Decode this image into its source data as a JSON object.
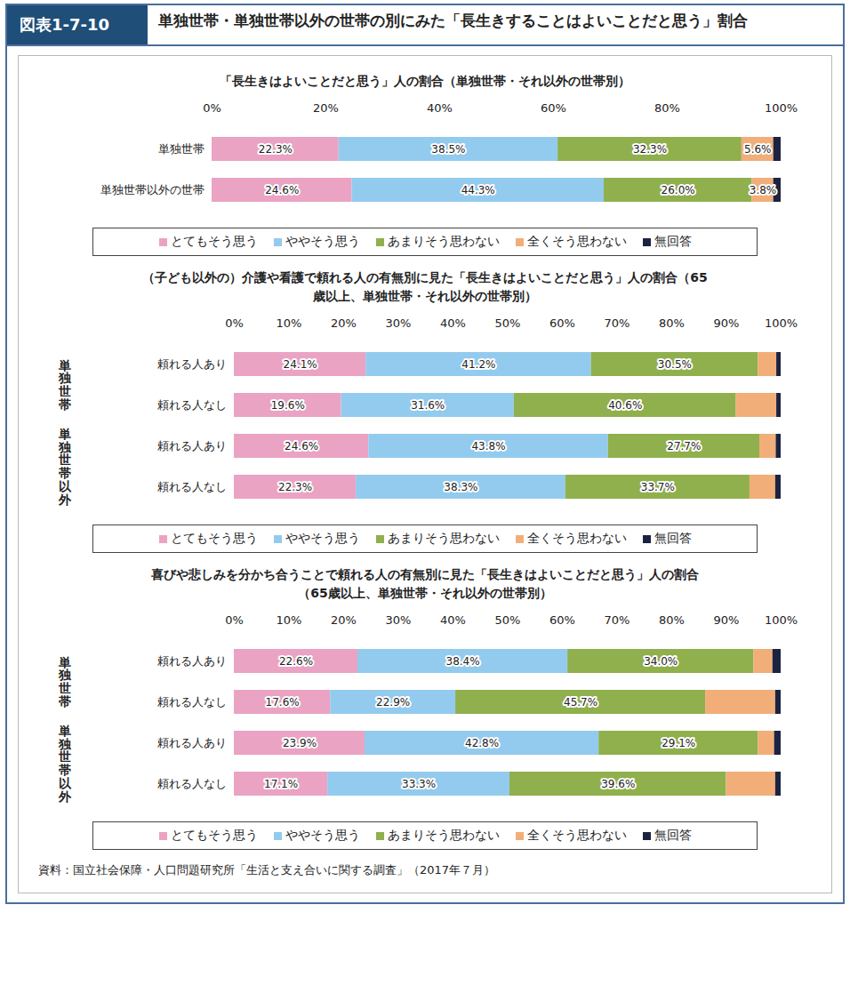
{
  "header": {
    "label": "図表1-7-10",
    "title": "単独世帯・単独世帯以外の世帯の別にみた「長生きすることはよいことだと思う」割合"
  },
  "source": "資料：国立社会保障・人口問題研究所「生活と支え合いに関する調査」（2017年７月）",
  "chart_data": [
    {
      "type": "bar",
      "orientation": "horizontal",
      "stacked": true,
      "data_labels": true,
      "title": "「長生きはよいことだと思う」人の割合（単独世帯・それ以外の世帯別）",
      "categories": [
        "単独世帯",
        "単独世帯以外の世帯"
      ],
      "xlim": [
        0,
        100
      ],
      "xticks": [
        {
          "value": 0,
          "label": "0%"
        },
        {
          "value": 20,
          "label": "20%"
        },
        {
          "value": 40,
          "label": "40%"
        },
        {
          "value": 60,
          "label": "60%"
        },
        {
          "value": 80,
          "label": "80%"
        },
        {
          "value": 100,
          "label": "100%"
        }
      ],
      "series": [
        {
          "name": "とてもそう思う",
          "color": "#eba3c3",
          "values": [
            22.3,
            24.6
          ],
          "value_labels": [
            "22.3%",
            "24.6%"
          ]
        },
        {
          "name": "ややそう思う",
          "color": "#93cbef",
          "values": [
            38.5,
            44.3
          ],
          "value_labels": [
            "38.5%",
            "44.3%"
          ]
        },
        {
          "name": "あまりそう思わない",
          "color": "#8fb04c",
          "values": [
            32.3,
            26.0
          ],
          "value_labels": [
            "32.3%",
            "26.0%"
          ]
        },
        {
          "name": "全くそう思わない",
          "color": "#f2ae78",
          "values": [
            5.6,
            3.8
          ],
          "value_labels": [
            "5.6%",
            "3.8%"
          ]
        },
        {
          "name": "無回答",
          "color": "#1c2340",
          "values": [
            1.3,
            1.3
          ],
          "value_labels": [
            null,
            null
          ]
        }
      ]
    },
    {
      "type": "bar",
      "orientation": "horizontal",
      "stacked": true,
      "data_labels": true,
      "title": "（子ども以外の）介護や看護で頼れる人の有無別に見た「長生きはよいことだと思う」人の割合（65歳以上、単独世帯・それ以外の世帯別）",
      "categories": [
        "頼れる人あり",
        "頼れる人なし",
        "頼れる人あり",
        "頼れる人なし"
      ],
      "group_labels": [
        "単独世帯",
        "単独世帯",
        "単独世帯以外",
        "単独世帯以外"
      ],
      "xlim": [
        0,
        100
      ],
      "xticks": [
        {
          "value": 0,
          "label": "0%"
        },
        {
          "value": 10,
          "label": "10%"
        },
        {
          "value": 20,
          "label": "20%"
        },
        {
          "value": 30,
          "label": "30%"
        },
        {
          "value": 40,
          "label": "40%"
        },
        {
          "value": 50,
          "label": "50%"
        },
        {
          "value": 60,
          "label": "60%"
        },
        {
          "value": 70,
          "label": "70%"
        },
        {
          "value": 80,
          "label": "80%"
        },
        {
          "value": 90,
          "label": "90%"
        },
        {
          "value": 100,
          "label": "100%"
        }
      ],
      "series": [
        {
          "name": "とてもそう思う",
          "color": "#eba3c3",
          "values": [
            24.1,
            19.6,
            24.6,
            22.3
          ],
          "value_labels": [
            "24.1%",
            "19.6%",
            "24.6%",
            "22.3%"
          ]
        },
        {
          "name": "ややそう思う",
          "color": "#93cbef",
          "values": [
            41.2,
            31.6,
            43.8,
            38.3
          ],
          "value_labels": [
            "41.2%",
            "31.6%",
            "43.8%",
            "38.3%"
          ]
        },
        {
          "name": "あまりそう思わない",
          "color": "#8fb04c",
          "values": [
            30.5,
            40.6,
            27.7,
            33.7
          ],
          "value_labels": [
            "30.5%",
            "40.6%",
            "27.7%",
            "33.7%"
          ]
        },
        {
          "name": "全くそう思わない",
          "color": "#f2ae78",
          "values": [
            3.4,
            7.4,
            3.0,
            4.7
          ],
          "value_labels": [
            null,
            null,
            null,
            null
          ]
        },
        {
          "name": "無回答",
          "color": "#1c2340",
          "values": [
            0.8,
            0.8,
            0.9,
            1.0
          ],
          "value_labels": [
            null,
            null,
            null,
            null
          ]
        }
      ]
    },
    {
      "type": "bar",
      "orientation": "horizontal",
      "stacked": true,
      "data_labels": true,
      "title": "喜びや悲しみを分かち合うことで頼れる人の有無別に見た「長生きはよいことだと思う」人の割合（65歳以上、単独世帯・それ以外の世帯別）",
      "categories": [
        "頼れる人あり",
        "頼れる人なし",
        "頼れる人あり",
        "頼れる人なし"
      ],
      "group_labels": [
        "単独世帯",
        "単独世帯",
        "単独世帯以外",
        "単独世帯以外"
      ],
      "xlim": [
        0,
        100
      ],
      "xticks": [
        {
          "value": 0,
          "label": "0%"
        },
        {
          "value": 10,
          "label": "10%"
        },
        {
          "value": 20,
          "label": "20%"
        },
        {
          "value": 30,
          "label": "30%"
        },
        {
          "value": 40,
          "label": "40%"
        },
        {
          "value": 50,
          "label": "50%"
        },
        {
          "value": 60,
          "label": "60%"
        },
        {
          "value": 70,
          "label": "70%"
        },
        {
          "value": 80,
          "label": "80%"
        },
        {
          "value": 90,
          "label": "90%"
        },
        {
          "value": 100,
          "label": "100%"
        }
      ],
      "series": [
        {
          "name": "とてもそう思う",
          "color": "#eba3c3",
          "values": [
            22.6,
            17.6,
            23.9,
            17.1
          ],
          "value_labels": [
            "22.6%",
            "17.6%",
            "23.9%",
            "17.1%"
          ]
        },
        {
          "name": "ややそう思う",
          "color": "#93cbef",
          "values": [
            38.4,
            22.9,
            42.8,
            33.3
          ],
          "value_labels": [
            "38.4%",
            "22.9%",
            "42.8%",
            "33.3%"
          ]
        },
        {
          "name": "あまりそう思わない",
          "color": "#8fb04c",
          "values": [
            34.0,
            45.7,
            29.1,
            39.6
          ],
          "value_labels": [
            "34.0%",
            "45.7%",
            "29.1%",
            "39.6%"
          ]
        },
        {
          "name": "全くそう思わない",
          "color": "#f2ae78",
          "values": [
            3.5,
            12.8,
            3.0,
            9.0
          ],
          "value_labels": [
            null,
            null,
            null,
            null
          ]
        },
        {
          "name": "無回答",
          "color": "#1c2340",
          "values": [
            1.5,
            1.0,
            1.2,
            1.0
          ],
          "value_labels": [
            null,
            null,
            null,
            null
          ]
        }
      ]
    }
  ]
}
